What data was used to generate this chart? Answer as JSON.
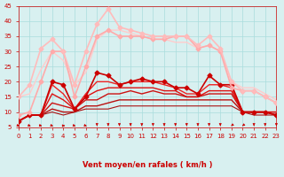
{
  "xlabel": "Vent moyen/en rafales ( km/h )",
  "ylabel": "",
  "xlim": [
    0,
    23
  ],
  "ylim": [
    5,
    45
  ],
  "yticks": [
    5,
    10,
    15,
    20,
    25,
    30,
    35,
    40,
    45
  ],
  "xticks": [
    0,
    1,
    2,
    3,
    4,
    5,
    6,
    7,
    8,
    9,
    10,
    11,
    12,
    13,
    14,
    15,
    16,
    17,
    18,
    19,
    20,
    21,
    22,
    23
  ],
  "bg_color": "#d8f0f0",
  "grid_color": "#aadddd",
  "series": [
    {
      "x": [
        0,
        1,
        2,
        3,
        4,
        5,
        6,
        7,
        8,
        9,
        10,
        11,
        12,
        13,
        14,
        15,
        16,
        17,
        18,
        19,
        20,
        21,
        22,
        23
      ],
      "y": [
        7,
        9,
        9,
        20,
        19,
        11,
        15,
        23,
        22,
        19,
        20,
        21,
        20,
        20,
        18,
        18,
        16,
        22,
        19,
        19,
        10,
        10,
        10,
        9
      ],
      "color": "#cc0000",
      "lw": 1.2,
      "marker": "D",
      "ms": 2.5,
      "zorder": 5
    },
    {
      "x": [
        0,
        1,
        2,
        3,
        4,
        5,
        6,
        7,
        8,
        9,
        10,
        11,
        12,
        13,
        14,
        15,
        16,
        17,
        18,
        19,
        20,
        21,
        22,
        23
      ],
      "y": [
        7,
        9,
        9,
        19,
        16,
        11,
        16,
        20,
        20,
        19,
        20,
        20,
        20,
        19,
        18,
        16,
        16,
        19,
        19,
        18,
        10,
        10,
        10,
        10
      ],
      "color": "#ee2222",
      "lw": 1.0,
      "marker": null,
      "ms": 0,
      "zorder": 4
    },
    {
      "x": [
        0,
        1,
        2,
        3,
        4,
        5,
        6,
        7,
        8,
        9,
        10,
        11,
        12,
        13,
        14,
        15,
        16,
        17,
        18,
        19,
        20,
        21,
        22,
        23
      ],
      "y": [
        7,
        9,
        9,
        16,
        14,
        11,
        15,
        17,
        18,
        18,
        18,
        18,
        18,
        17,
        17,
        15,
        15,
        17,
        17,
        17,
        10,
        10,
        10,
        10
      ],
      "color": "#dd1111",
      "lw": 1.0,
      "marker": null,
      "ms": 0,
      "zorder": 4
    },
    {
      "x": [
        0,
        1,
        2,
        3,
        4,
        5,
        6,
        7,
        8,
        9,
        10,
        11,
        12,
        13,
        14,
        15,
        16,
        17,
        18,
        19,
        20,
        21,
        22,
        23
      ],
      "y": [
        7,
        9,
        9,
        13,
        12,
        11,
        14,
        14,
        16,
        16,
        17,
        16,
        17,
        16,
        16,
        15,
        15,
        16,
        16,
        16,
        10,
        10,
        10,
        9
      ],
      "color": "#cc1111",
      "lw": 1.0,
      "marker": null,
      "ms": 0,
      "zorder": 4
    },
    {
      "x": [
        0,
        1,
        2,
        3,
        4,
        5,
        6,
        7,
        8,
        9,
        10,
        11,
        12,
        13,
        14,
        15,
        16,
        17,
        18,
        19,
        20,
        21,
        22,
        23
      ],
      "y": [
        7,
        9,
        9,
        11,
        10,
        10,
        12,
        12,
        13,
        14,
        14,
        14,
        14,
        14,
        14,
        14,
        14,
        14,
        14,
        14,
        10,
        10,
        10,
        9
      ],
      "color": "#bb1111",
      "lw": 1.0,
      "marker": null,
      "ms": 0,
      "zorder": 3
    },
    {
      "x": [
        0,
        1,
        2,
        3,
        4,
        5,
        6,
        7,
        8,
        9,
        10,
        11,
        12,
        13,
        14,
        15,
        16,
        17,
        18,
        19,
        20,
        21,
        22,
        23
      ],
      "y": [
        7,
        9,
        9,
        10,
        9,
        10,
        11,
        11,
        11,
        12,
        12,
        12,
        12,
        12,
        12,
        12,
        12,
        12,
        12,
        12,
        10,
        9,
        9,
        9
      ],
      "color": "#aa1111",
      "lw": 0.8,
      "marker": null,
      "ms": 0,
      "zorder": 3
    },
    {
      "x": [
        0,
        1,
        2,
        3,
        4,
        5,
        6,
        7,
        8,
        9,
        10,
        11,
        12,
        13,
        14,
        15,
        16,
        17,
        18,
        19,
        20,
        21,
        22,
        23
      ],
      "y": [
        9,
        10,
        20,
        30,
        30,
        15,
        25,
        35,
        37,
        35,
        35,
        35,
        34,
        34,
        35,
        35,
        31,
        32,
        30,
        18,
        17,
        17,
        15,
        13
      ],
      "color": "#ffaaaa",
      "lw": 1.2,
      "marker": "D",
      "ms": 2.5,
      "zorder": 6
    },
    {
      "x": [
        0,
        1,
        2,
        3,
        4,
        5,
        6,
        7,
        8,
        9,
        10,
        11,
        12,
        13,
        14,
        15,
        16,
        17,
        18,
        19,
        20,
        21,
        22,
        23
      ],
      "y": [
        15,
        19,
        31,
        34,
        30,
        19,
        30,
        39,
        44,
        38,
        37,
        36,
        35,
        35,
        35,
        35,
        32,
        35,
        31,
        20,
        17,
        17,
        15,
        13
      ],
      "color": "#ffbbbb",
      "lw": 1.2,
      "marker": "D",
      "ms": 2.5,
      "zorder": 6
    },
    {
      "x": [
        0,
        1,
        2,
        3,
        4,
        5,
        6,
        7,
        8,
        9,
        10,
        11,
        12,
        13,
        14,
        15,
        16,
        17,
        18,
        19,
        20,
        21,
        22,
        23
      ],
      "y": [
        15,
        16,
        24,
        30,
        27,
        19,
        23,
        34,
        37,
        37,
        36,
        35,
        34,
        34,
        33,
        33,
        31,
        32,
        30,
        20,
        18,
        18,
        16,
        14
      ],
      "color": "#ffcccc",
      "lw": 1.0,
      "marker": null,
      "ms": 0,
      "zorder": 5
    }
  ],
  "arrow_color": "#cc0000",
  "font_color": "#cc0000"
}
